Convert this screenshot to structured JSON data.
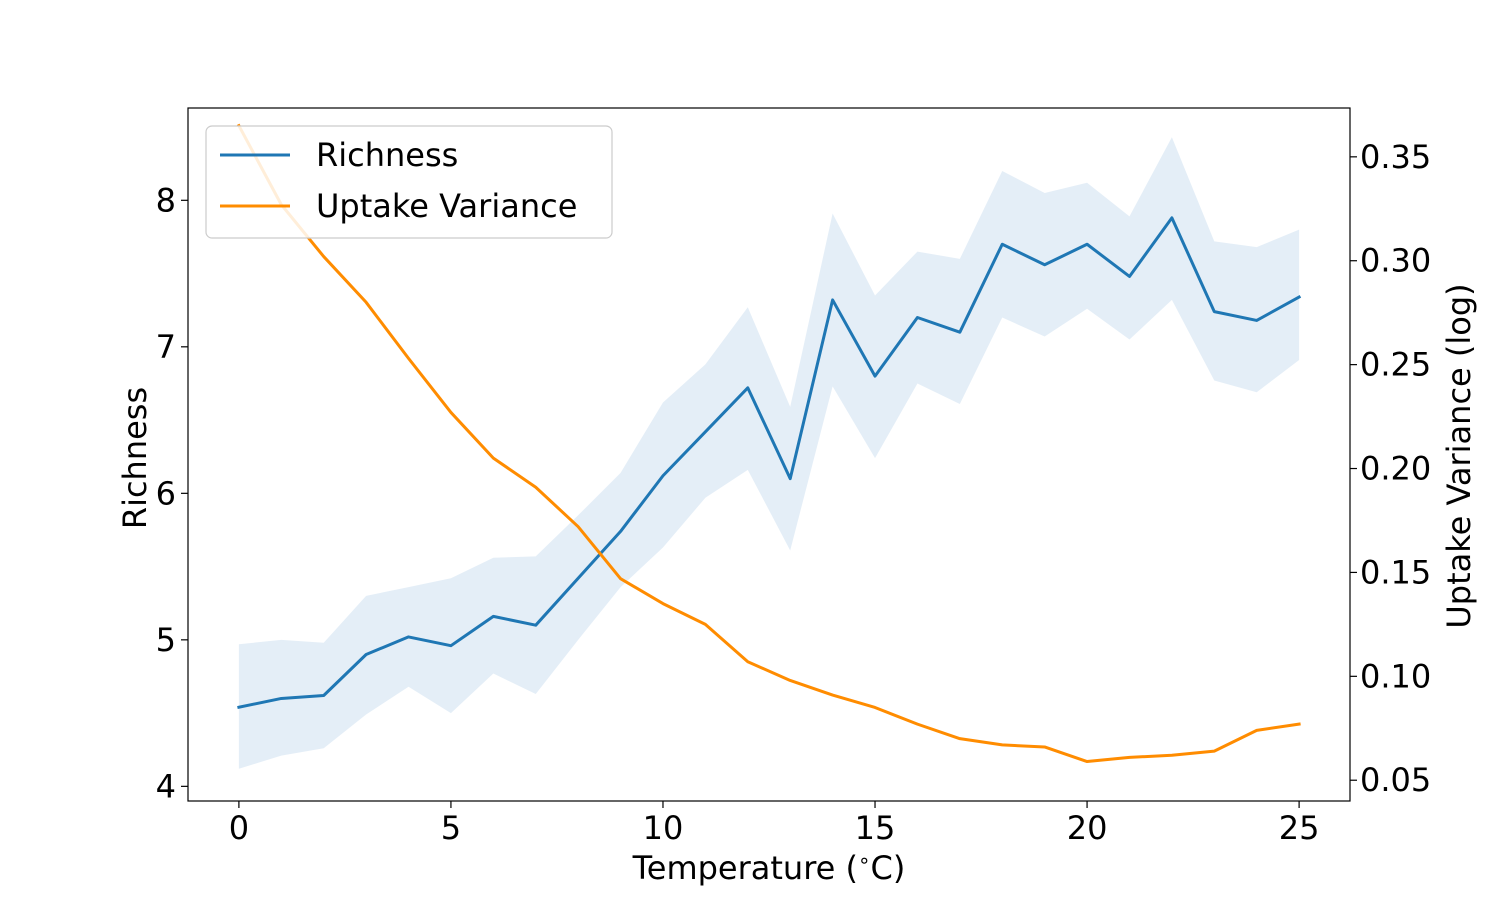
{
  "chart_data": {
    "type": "line",
    "xlabel": "Temperature ($^\\circ$C)",
    "xlabel_parts": {
      "prefix": "Temperature (",
      "degree": "∘",
      "suffix": "C)"
    },
    "ylabel": "Richness",
    "y2label": "Uptake Variance (log)",
    "x": [
      0,
      1,
      2,
      3,
      4,
      5,
      6,
      7,
      8,
      9,
      10,
      11,
      12,
      13,
      14,
      15,
      16,
      17,
      18,
      19,
      20,
      21,
      22,
      23,
      24,
      25
    ],
    "xlim": [
      -1.2,
      26.2
    ],
    "ylim": [
      3.9,
      8.63
    ],
    "y2lim": [
      0.04,
      0.3735
    ],
    "xticks": [
      0,
      5,
      10,
      15,
      20,
      25
    ],
    "xtick_labels": [
      "0",
      "5",
      "10",
      "15",
      "20",
      "25"
    ],
    "yticks": [
      4,
      5,
      6,
      7,
      8
    ],
    "ytick_labels": [
      "4",
      "5",
      "6",
      "7",
      "8"
    ],
    "y2ticks": [
      0.05,
      0.1,
      0.15,
      0.2,
      0.25,
      0.3,
      0.35
    ],
    "y2tick_labels": [
      "0.05",
      "0.10",
      "0.15",
      "0.20",
      "0.25",
      "0.30",
      "0.35"
    ],
    "grid": false,
    "legend_position": "top-left",
    "series": [
      {
        "name": "Richness",
        "axis": "left",
        "color": "#1f77b4",
        "values": [
          4.54,
          4.6,
          4.62,
          4.9,
          5.02,
          4.96,
          5.16,
          5.1,
          5.42,
          5.74,
          6.12,
          6.42,
          6.72,
          6.1,
          7.32,
          6.8,
          7.2,
          7.1,
          7.7,
          7.56,
          7.7,
          7.48,
          7.88,
          7.24,
          7.18,
          7.34
        ],
        "band_lower": [
          4.12,
          4.21,
          4.26,
          4.49,
          4.68,
          4.5,
          4.77,
          4.63,
          5.0,
          5.36,
          5.63,
          5.97,
          6.16,
          5.61,
          6.73,
          6.24,
          6.75,
          6.61,
          7.2,
          7.07,
          7.26,
          7.05,
          7.32,
          6.77,
          6.69,
          6.91
        ],
        "band_upper": [
          4.97,
          5.0,
          4.98,
          5.3,
          5.36,
          5.42,
          5.56,
          5.57,
          5.85,
          6.14,
          6.62,
          6.88,
          7.27,
          6.59,
          7.91,
          7.35,
          7.65,
          7.6,
          8.2,
          8.05,
          8.12,
          7.89,
          8.43,
          7.72,
          7.68,
          7.8
        ],
        "band_color": "#dbe8f4"
      },
      {
        "name": "Uptake Variance",
        "axis": "right",
        "color": "#ff8c00",
        "values": [
          0.365,
          0.327,
          0.302,
          0.28,
          0.253,
          0.227,
          0.205,
          0.191,
          0.172,
          0.147,
          0.135,
          0.125,
          0.107,
          0.098,
          0.091,
          0.085,
          0.077,
          0.07,
          0.067,
          0.066,
          0.059,
          0.061,
          0.062,
          0.064,
          0.074,
          0.077
        ]
      }
    ]
  }
}
